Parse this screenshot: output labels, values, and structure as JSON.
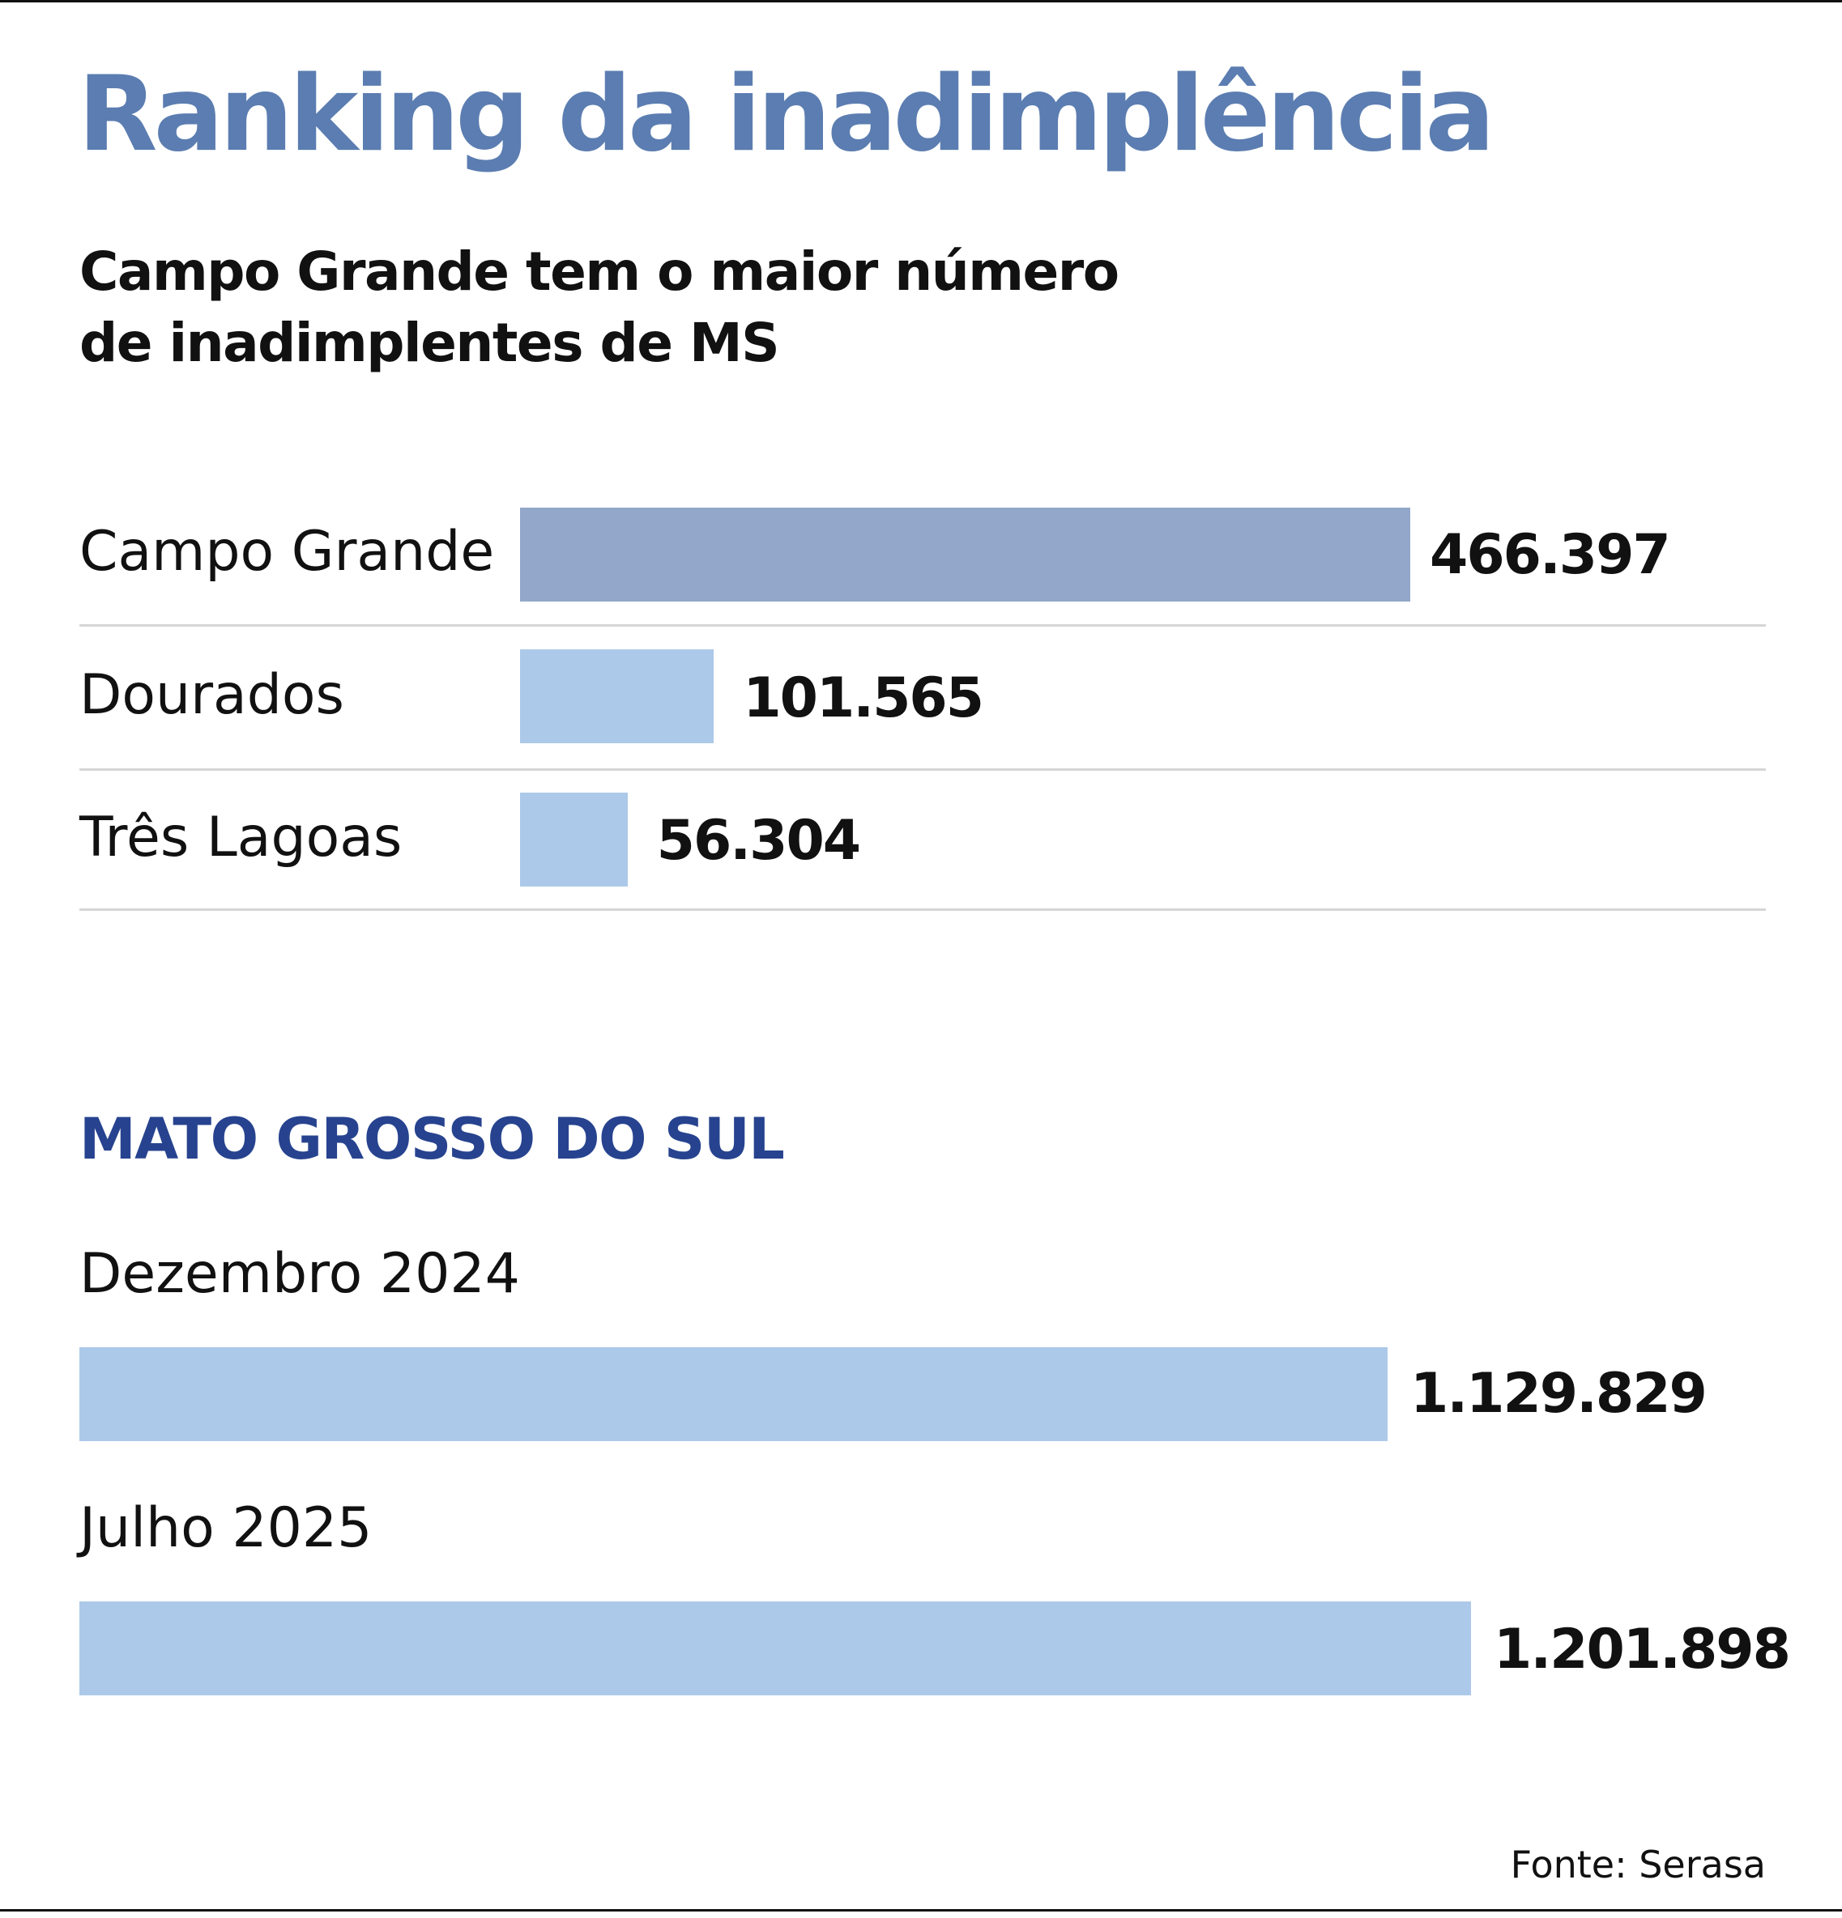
{
  "title": "Ranking da inadimplência",
  "subtitle_line1": "Campo Grande tem o maior número",
  "subtitle_line2": "de inadimplentes de MS",
  "colors": {
    "title": "#5b7db1",
    "highlight_bar": "#92a7c9",
    "bar": "#adc9e9",
    "section": "#27438f"
  },
  "chart_data": [
    {
      "type": "bar",
      "orientation": "horizontal",
      "title": "Campo Grande tem o maior número de inadimplentes de MS",
      "categories": [
        "Campo Grande",
        "Dourados",
        "Três Lagoas"
      ],
      "values": [
        466397,
        101565,
        56304
      ],
      "value_labels": [
        "466.397",
        "101.565",
        "56.304"
      ]
    },
    {
      "type": "bar",
      "orientation": "horizontal",
      "title": "MATO GROSSO DO SUL",
      "categories": [
        "Dezembro 2024",
        "Julho 2025"
      ],
      "values": [
        1129829,
        1201898
      ],
      "value_labels": [
        "1.129.829",
        "1.201.898"
      ]
    }
  ],
  "source": "Fonte: Serasa"
}
